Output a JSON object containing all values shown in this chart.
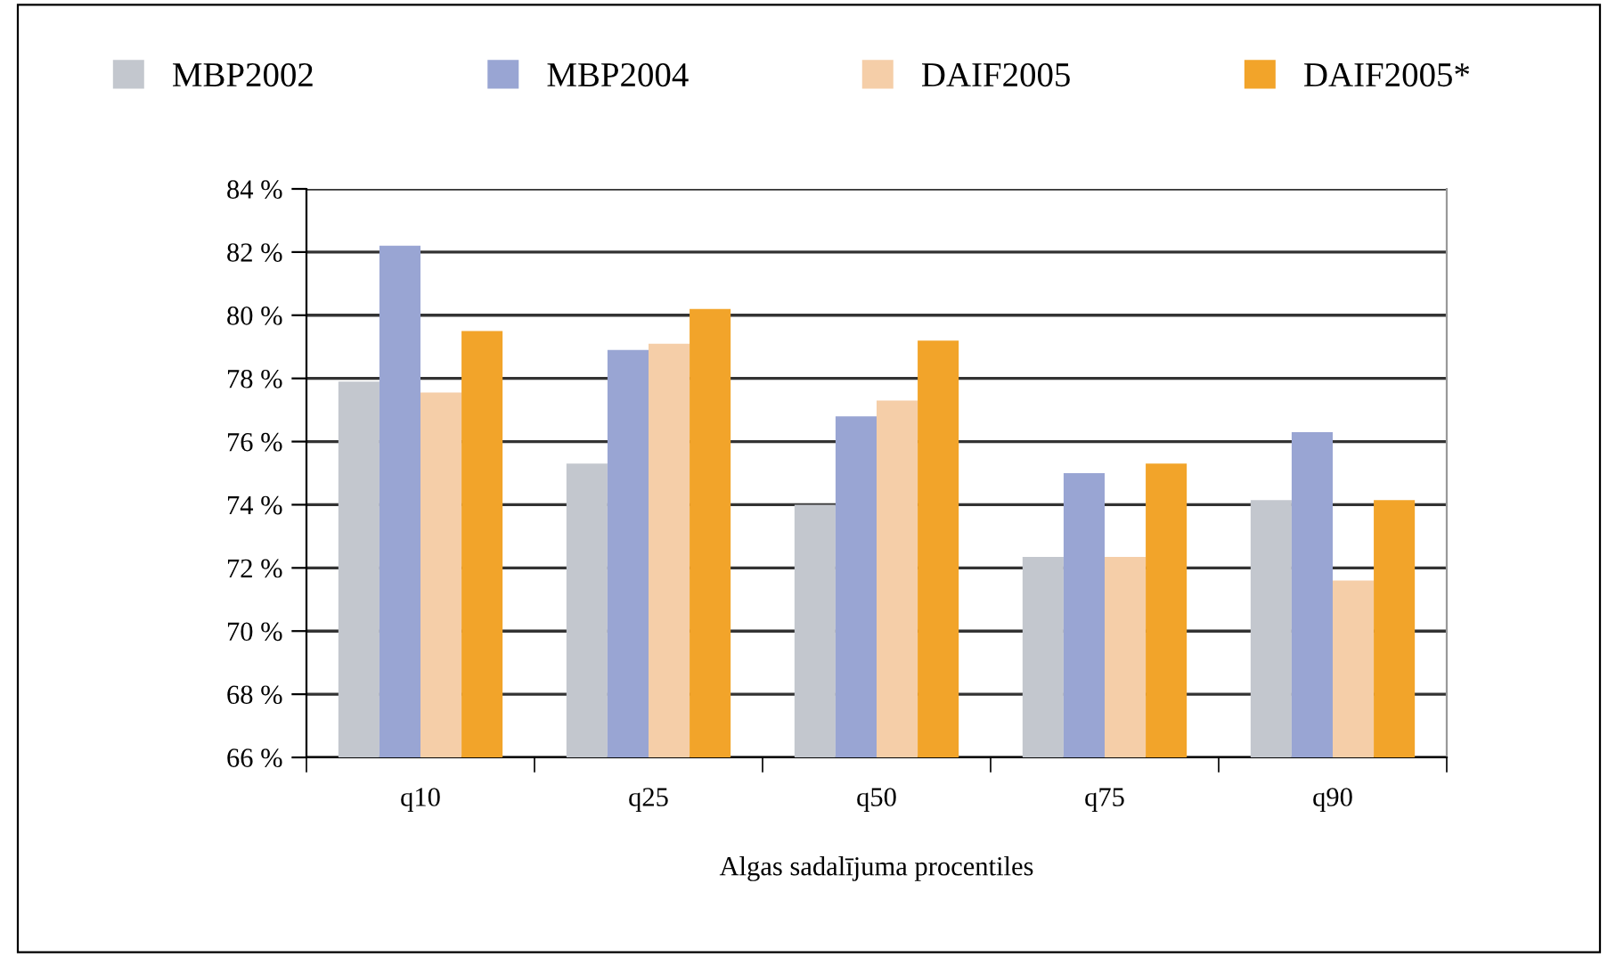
{
  "chart_data": {
    "type": "bar",
    "xlabel": "Algas sadalījuma procentiles",
    "categories": [
      "q10",
      "q25",
      "q50",
      "q75",
      "q90"
    ],
    "series": [
      {
        "name": "MBP2002",
        "color": "#c3c7ce",
        "values": [
          77.9,
          75.3,
          74.0,
          72.35,
          74.15
        ]
      },
      {
        "name": "MBP2004",
        "color": "#99a5d3",
        "values": [
          82.2,
          78.9,
          76.8,
          75.0,
          76.3
        ]
      },
      {
        "name": "DAIF2005",
        "color": "#f5cea8",
        "values": [
          77.55,
          79.1,
          77.3,
          72.35,
          71.6
        ]
      },
      {
        "name": "DAIF2005*",
        "color": "#f2a42a",
        "values": [
          79.5,
          80.2,
          79.2,
          75.3,
          74.15
        ]
      }
    ],
    "ylim": [
      66,
      84
    ],
    "yticks": [
      {
        "value": 66,
        "label": "66 %"
      },
      {
        "value": 68,
        "label": "68 %"
      },
      {
        "value": 70,
        "label": "70 %"
      },
      {
        "value": 72,
        "label": "72 %"
      },
      {
        "value": 74,
        "label": "74 %"
      },
      {
        "value": 76,
        "label": "76 %"
      },
      {
        "value": 78,
        "label": "78 %"
      },
      {
        "value": 80,
        "label": "80 %"
      },
      {
        "value": 82,
        "label": "82 %"
      },
      {
        "value": 84,
        "label": "84 %"
      }
    ],
    "grid": "y",
    "legend": "top"
  }
}
